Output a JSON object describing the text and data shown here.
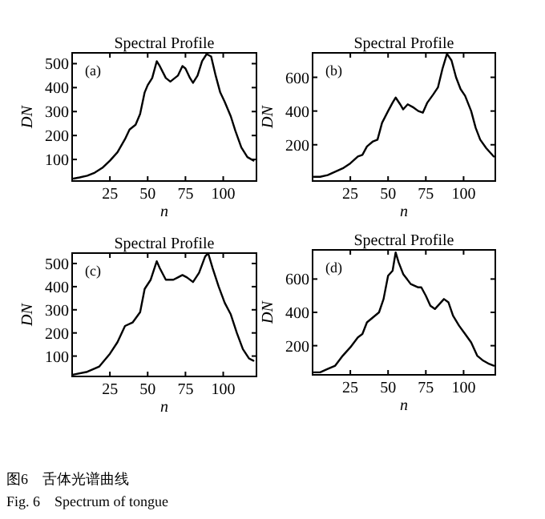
{
  "chart_data": [
    {
      "type": "line",
      "title": "Spectral Profile",
      "xlabel": "n",
      "ylabel": "DN",
      "annotations": [
        "(a)"
      ],
      "xlim": [
        0,
        122
      ],
      "ylim": [
        10,
        545
      ],
      "xticks": [
        25,
        50,
        75,
        100
      ],
      "yticks": [
        100,
        200,
        300,
        400,
        500
      ],
      "color": "#000000",
      "x": [
        1,
        5,
        10,
        15,
        20,
        25,
        30,
        35,
        38,
        42,
        45,
        48,
        50,
        53,
        56,
        58,
        62,
        65,
        70,
        73,
        75,
        78,
        80,
        83,
        86,
        89,
        92,
        95,
        98,
        101,
        105,
        108,
        112,
        116,
        120
      ],
      "values": [
        20,
        25,
        32,
        45,
        65,
        95,
        130,
        185,
        225,
        245,
        290,
        380,
        410,
        440,
        510,
        490,
        440,
        425,
        450,
        490,
        480,
        440,
        420,
        450,
        510,
        540,
        530,
        450,
        380,
        340,
        280,
        220,
        150,
        110,
        95
      ]
    },
    {
      "type": "line",
      "title": "Spectral Profile",
      "xlabel": "n",
      "ylabel": "DN",
      "annotations": [
        "(b)"
      ],
      "xlim": [
        0,
        121
      ],
      "ylim": [
        -15,
        745
      ],
      "xticks": [
        25,
        50,
        75,
        100
      ],
      "yticks": [
        200,
        400,
        600
      ],
      "color": "#000000",
      "x": [
        1,
        5,
        10,
        15,
        20,
        25,
        30,
        33,
        36,
        40,
        43,
        46,
        50,
        53,
        55,
        58,
        60,
        63,
        67,
        70,
        73,
        76,
        80,
        83,
        86,
        89,
        92,
        95,
        98,
        101,
        105,
        108,
        111,
        115,
        120
      ],
      "values": [
        10,
        10,
        20,
        40,
        60,
        90,
        130,
        140,
        190,
        220,
        230,
        330,
        400,
        450,
        480,
        440,
        410,
        440,
        420,
        400,
        390,
        450,
        500,
        540,
        650,
        740,
        700,
        600,
        530,
        490,
        400,
        300,
        230,
        180,
        130
      ]
    },
    {
      "type": "line",
      "title": "Spectral Profile",
      "xlabel": "n",
      "ylabel": "DN",
      "annotations": [
        "(c)"
      ],
      "xlim": [
        0,
        122
      ],
      "ylim": [
        12,
        545
      ],
      "xticks": [
        25,
        50,
        75,
        100
      ],
      "yticks": [
        100,
        200,
        300,
        400,
        500
      ],
      "color": "#000000",
      "x": [
        1,
        10,
        18,
        25,
        30,
        35,
        40,
        45,
        48,
        52,
        56,
        58,
        62,
        67,
        70,
        73,
        76,
        80,
        84,
        88,
        90,
        93,
        97,
        101,
        105,
        109,
        113,
        117,
        120
      ],
      "values": [
        20,
        32,
        55,
        110,
        160,
        230,
        245,
        290,
        390,
        430,
        510,
        480,
        430,
        430,
        440,
        450,
        440,
        420,
        460,
        530,
        545,
        480,
        400,
        330,
        280,
        200,
        130,
        90,
        80
      ]
    },
    {
      "type": "line",
      "title": "Spectral Profile",
      "xlabel": "n",
      "ylabel": "DN",
      "annotations": [
        "(d)",
        "图6　舌体光谱曲线",
        "Fig. 6　Spectrum of tongue"
      ],
      "xlim": [
        0,
        121
      ],
      "ylim": [
        25,
        775
      ],
      "xticks": [
        25,
        50,
        75,
        100
      ],
      "yticks": [
        200,
        400,
        600
      ],
      "color": "#000000",
      "x": [
        1,
        5,
        10,
        15,
        20,
        25,
        30,
        33,
        36,
        40,
        44,
        47,
        50,
        53,
        55,
        57,
        60,
        65,
        70,
        72,
        75,
        78,
        81,
        84,
        87,
        90,
        93,
        97,
        101,
        105,
        109,
        113,
        117,
        120
      ],
      "values": [
        40,
        40,
        60,
        80,
        140,
        190,
        250,
        270,
        340,
        370,
        400,
        480,
        620,
        650,
        760,
        700,
        630,
        570,
        550,
        550,
        500,
        440,
        420,
        450,
        480,
        460,
        380,
        320,
        270,
        220,
        140,
        110,
        90,
        80
      ]
    }
  ]
}
